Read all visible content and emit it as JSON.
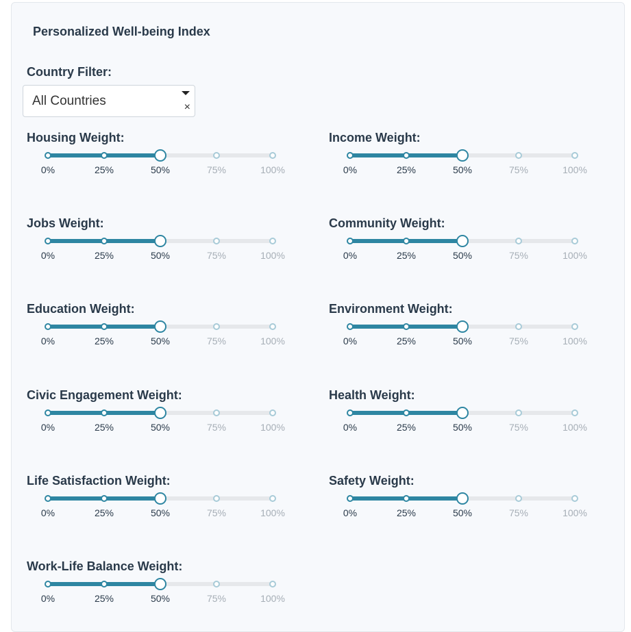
{
  "title": "Personalized Well-being Index",
  "country_filter": {
    "label": "Country Filter:",
    "value": "All Countries",
    "clear_glyph": "×"
  },
  "marks": [
    "0%",
    "25%",
    "50%",
    "75%",
    "100%"
  ],
  "accent_color": "#2e86a2",
  "sliders": [
    {
      "label": "Housing Weight:",
      "value": 0.5
    },
    {
      "label": "Income Weight:",
      "value": 0.5
    },
    {
      "label": "Jobs Weight:",
      "value": 0.5
    },
    {
      "label": "Community Weight:",
      "value": 0.5
    },
    {
      "label": "Education Weight:",
      "value": 0.5
    },
    {
      "label": "Environment Weight:",
      "value": 0.5
    },
    {
      "label": "Civic Engagement Weight:",
      "value": 0.5
    },
    {
      "label": "Health Weight:",
      "value": 0.5
    },
    {
      "label": "Life Satisfaction Weight:",
      "value": 0.5
    },
    {
      "label": "Safety Weight:",
      "value": 0.5
    },
    {
      "label": "Work-Life Balance Weight:",
      "value": 0.5
    }
  ]
}
